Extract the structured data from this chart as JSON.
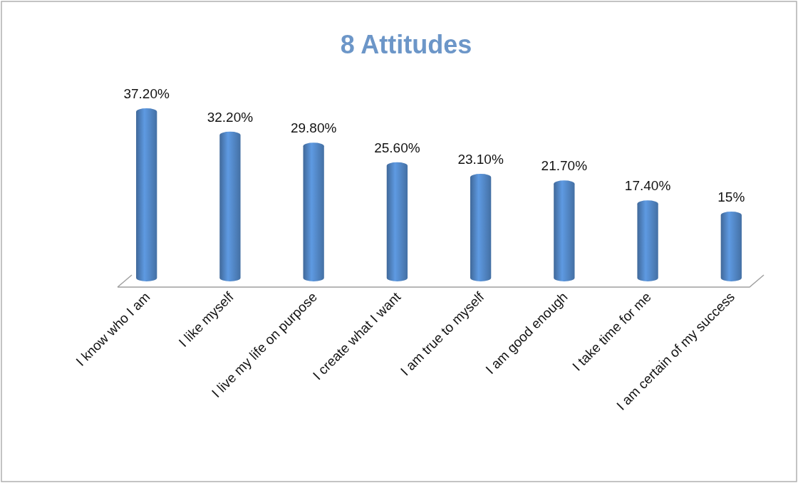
{
  "chart_data": {
    "type": "bar",
    "title": "8 Attitudes",
    "categories": [
      "I know who I am",
      "I like myself",
      "I live my life on purpose",
      "I create what I want",
      "I am true to myself",
      "I am good enough",
      "I take time for me",
      "I am certain of my success"
    ],
    "values": [
      37.2,
      32.2,
      29.8,
      25.6,
      23.1,
      21.7,
      17.4,
      15
    ],
    "value_labels": [
      "37.20%",
      "32.20%",
      "29.80%",
      "25.60%",
      "23.10%",
      "21.70%",
      "17.40%",
      "15%"
    ],
    "color": "#4f81bd"
  }
}
